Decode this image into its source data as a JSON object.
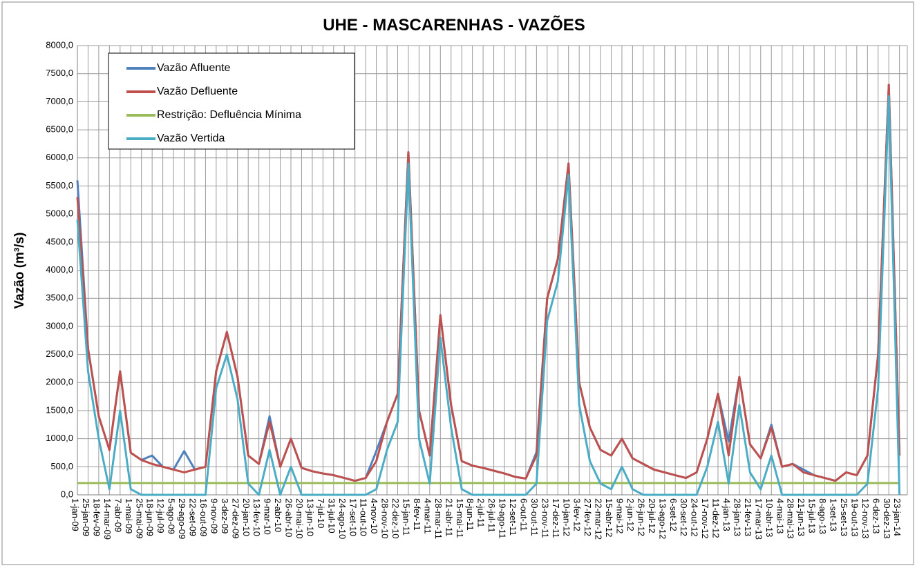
{
  "chart_data": {
    "type": "line",
    "title": "UHE - MASCARENHAS - VAZÕES",
    "y_label": "Vazão (m³/s)",
    "categories": [
      "1-jan-09",
      "25-jan-09",
      "18-fev-09",
      "14-mar-09",
      "7-abr-09",
      "1-mai-09",
      "25-mai-09",
      "18-jun-09",
      "12-jul-09",
      "5-ago-09",
      "29-ago-09",
      "22-set-09",
      "16-out-09",
      "9-nov-09",
      "3-dez-09",
      "27-dez-09",
      "20-jan-10",
      "13-fev-10",
      "9-mar-10",
      "2-abr-10",
      "26-abr-10",
      "20-mai-10",
      "13-jun-10",
      "7-jul-10",
      "31-jul-10",
      "24-ago-10",
      "17-set-10",
      "11-out-10",
      "4-nov-10",
      "28-nov-10",
      "22-dez-10",
      "15-jan-11",
      "8-fev-11",
      "4-mar-11",
      "28-mar-11",
      "21-abr-11",
      "15-mai-11",
      "8-jun-11",
      "2-jul-11",
      "26-jul-11",
      "19-ago-11",
      "12-set-11",
      "6-out-11",
      "30-out-11",
      "23-nov-11",
      "17-dez-11",
      "10-jan-12",
      "3-fev-12",
      "27-fev-12",
      "22-mar-12",
      "15-abr-12",
      "9-mai-12",
      "2-jun-12",
      "26-jun-12",
      "20-jul-12",
      "13-ago-12",
      "6-set-12",
      "30-set-12",
      "24-out-12",
      "17-nov-12",
      "11-dez-12",
      "4-jan-13",
      "28-jan-13",
      "21-fev-13",
      "17-mar-13",
      "10-abr-13",
      "4-mai-13",
      "28-mai-13",
      "21-jun-13",
      "15-jul-13",
      "8-ago-13",
      "1-set-13",
      "25-set-13",
      "19-out-13",
      "12-nov-13",
      "6-dez-13",
      "30-dez-13",
      "23-jan-14"
    ],
    "series": [
      {
        "name": "Vazão Afluente",
        "color": "#4f81bd",
        "values": [
          5600,
          2600,
          1400,
          800,
          2200,
          750,
          620,
          700,
          500,
          450,
          780,
          450,
          500,
          2200,
          2900,
          2100,
          700,
          550,
          1400,
          500,
          1000,
          480,
          420,
          380,
          350,
          300,
          250,
          300,
          780,
          1300,
          1800,
          6100,
          1500,
          700,
          3200,
          1600,
          600,
          520,
          480,
          430,
          380,
          320,
          290,
          760,
          3500,
          4200,
          5900,
          2000,
          1200,
          800,
          700,
          1000,
          650,
          550,
          450,
          400,
          350,
          300,
          400,
          1000,
          1800,
          950,
          2100,
          900,
          650,
          1250,
          500,
          550,
          450,
          350,
          300,
          250,
          400,
          350,
          700,
          2500,
          7300,
          700
        ]
      },
      {
        "name": "Vazão Defluente",
        "color": "#c0504d",
        "values": [
          5300,
          2600,
          1400,
          800,
          2200,
          750,
          620,
          550,
          500,
          450,
          400,
          450,
          500,
          2200,
          2900,
          2100,
          700,
          550,
          1300,
          500,
          1000,
          480,
          420,
          380,
          350,
          300,
          250,
          300,
          600,
          1300,
          1800,
          6100,
          1500,
          700,
          3200,
          1600,
          600,
          520,
          480,
          430,
          380,
          320,
          290,
          700,
          3500,
          4200,
          5900,
          2000,
          1200,
          800,
          700,
          1000,
          650,
          550,
          450,
          400,
          350,
          300,
          400,
          1000,
          1800,
          700,
          2100,
          900,
          650,
          1200,
          500,
          550,
          400,
          350,
          300,
          250,
          400,
          350,
          700,
          2500,
          7300,
          700
        ]
      },
      {
        "name": "Restrição: Defluência Mínima",
        "color": "#9bbb59",
        "values": [
          210,
          210,
          210,
          210,
          210,
          210,
          210,
          210,
          210,
          210,
          210,
          210,
          210,
          210,
          210,
          210,
          210,
          210,
          210,
          210,
          210,
          210,
          210,
          210,
          210,
          210,
          210,
          210,
          210,
          210,
          210,
          210,
          210,
          210,
          210,
          210,
          210,
          210,
          210,
          210,
          210,
          210,
          210,
          210,
          210,
          210,
          210,
          210,
          210,
          210,
          210,
          210,
          210,
          210,
          210,
          210,
          210,
          210,
          210,
          210,
          210,
          210,
          210,
          210,
          210,
          210,
          210,
          210,
          210,
          210,
          210,
          210,
          210,
          210,
          210,
          210,
          210,
          210
        ]
      },
      {
        "name": "Vazão Vertida",
        "color": "#4bacc6",
        "values": [
          4900,
          2200,
          1000,
          100,
          1500,
          100,
          0,
          0,
          0,
          0,
          0,
          0,
          0,
          1900,
          2500,
          1700,
          200,
          0,
          800,
          0,
          500,
          0,
          0,
          0,
          0,
          0,
          0,
          0,
          100,
          800,
          1300,
          5900,
          1000,
          200,
          2800,
          1200,
          100,
          0,
          0,
          0,
          0,
          0,
          0,
          200,
          3100,
          3800,
          5700,
          1600,
          600,
          200,
          100,
          500,
          100,
          0,
          0,
          0,
          0,
          0,
          0,
          500,
          1300,
          200,
          1600,
          400,
          100,
          700,
          0,
          0,
          0,
          0,
          0,
          0,
          0,
          0,
          200,
          1900,
          7100,
          0
        ]
      }
    ],
    "ylim": [
      0,
      8000
    ],
    "yticks": [
      {
        "value": 0,
        "label": "0,0"
      },
      {
        "value": 500,
        "label": "500,0"
      },
      {
        "value": 1000,
        "label": "1000,0"
      },
      {
        "value": 1500,
        "label": "1500,0"
      },
      {
        "value": 2000,
        "label": "2000,0"
      },
      {
        "value": 2500,
        "label": "2500,0"
      },
      {
        "value": 3000,
        "label": "3000,0"
      },
      {
        "value": 3500,
        "label": "3500,0"
      },
      {
        "value": 4000,
        "label": "4000,0"
      },
      {
        "value": 4500,
        "label": "4500,0"
      },
      {
        "value": 5000,
        "label": "5000,0"
      },
      {
        "value": 5500,
        "label": "5500,0"
      },
      {
        "value": 6000,
        "label": "6000,0"
      },
      {
        "value": 6500,
        "label": "6500,0"
      },
      {
        "value": 7000,
        "label": "7000,0"
      },
      {
        "value": 7500,
        "label": "7500,0"
      },
      {
        "value": 8000,
        "label": "8000,0"
      }
    ],
    "grid": true,
    "legend": "upper left"
  }
}
